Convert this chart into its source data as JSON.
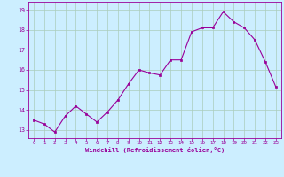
{
  "x": [
    0,
    1,
    2,
    3,
    4,
    5,
    6,
    7,
    8,
    9,
    10,
    11,
    12,
    13,
    14,
    15,
    16,
    17,
    18,
    19,
    20,
    21,
    22,
    23
  ],
  "y": [
    13.5,
    13.3,
    12.9,
    13.7,
    14.2,
    13.8,
    13.4,
    13.9,
    14.5,
    15.3,
    16.0,
    15.85,
    15.75,
    16.5,
    16.5,
    17.9,
    18.1,
    18.1,
    18.9,
    18.4,
    18.1,
    17.5,
    16.4,
    15.15
  ],
  "xlim": [
    -0.5,
    23.5
  ],
  "ylim": [
    12.6,
    19.4
  ],
  "yticks": [
    13,
    14,
    15,
    16,
    17,
    18,
    19
  ],
  "xticks": [
    0,
    1,
    2,
    3,
    4,
    5,
    6,
    7,
    8,
    9,
    10,
    11,
    12,
    13,
    14,
    15,
    16,
    17,
    18,
    19,
    20,
    21,
    22,
    23
  ],
  "xlabel": "Windchill (Refroidissement éolien,°C)",
  "line_color": "#990099",
  "marker_color": "#990099",
  "bg_color": "#cceeff",
  "grid_color": "#aaccbb",
  "tick_color": "#990099",
  "label_color": "#990099",
  "figsize": [
    3.2,
    2.0
  ],
  "dpi": 100
}
